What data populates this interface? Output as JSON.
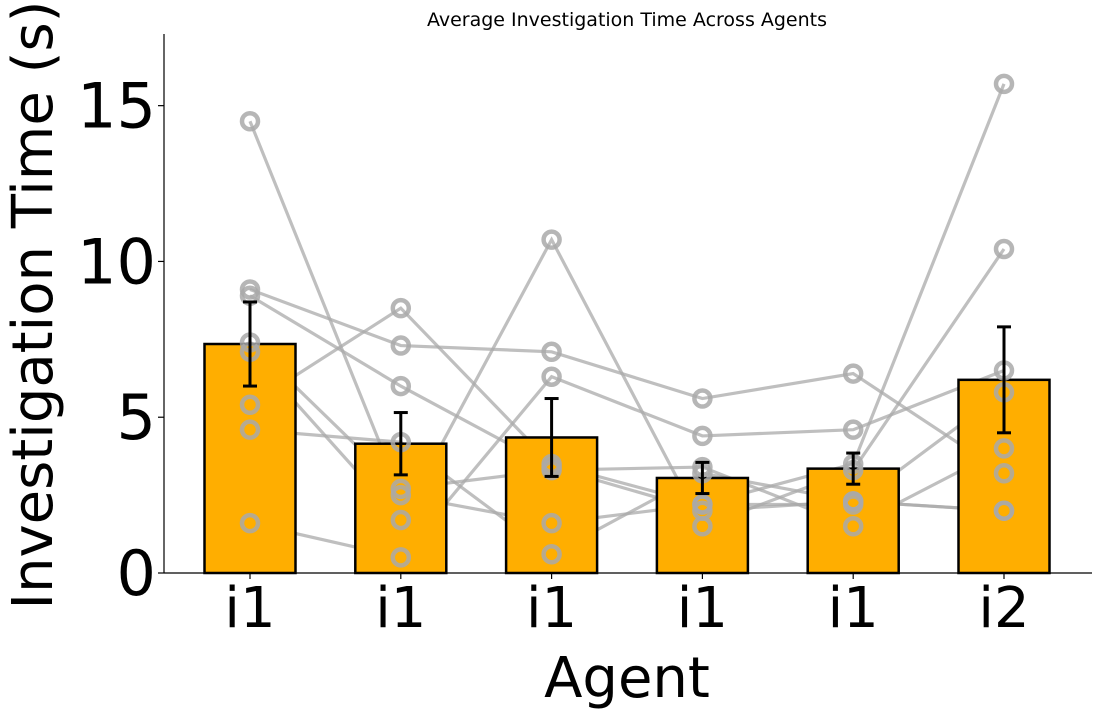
{
  "chart_data": {
    "type": "bar",
    "title": "Average Investigation Time Across Agents",
    "xlabel": "Agent",
    "ylabel": "Investigation Time (s)",
    "categories": [
      "i1",
      "i1",
      "i1",
      "i1",
      "i1",
      "i2"
    ],
    "values": [
      7.35,
      4.15,
      4.35,
      3.05,
      3.35,
      6.2
    ],
    "error": [
      1.35,
      1.0,
      1.25,
      0.5,
      0.5,
      1.7
    ],
    "ylim": [
      0,
      17.3
    ],
    "yticks": [
      0,
      5,
      10,
      15
    ],
    "bar_color": "#FFAE00",
    "bar_edge_color": "#000000",
    "subject_color": "#A9A9A9",
    "grid": false,
    "subjects": [
      [
        14.5,
        2.5,
        1.6,
        2.2,
        3.5,
        15.7
      ],
      [
        9.1,
        7.3,
        7.1,
        5.6,
        6.4,
        3.2
      ],
      [
        8.9,
        6.0,
        3.4,
        2.0,
        2.3,
        2.0
      ],
      [
        7.4,
        2.7,
        3.3,
        3.4,
        1.5,
        4.0
      ],
      [
        7.1,
        1.7,
        10.7,
        1.5,
        3.3,
        10.4
      ],
      [
        5.4,
        8.5,
        3.5,
        2.2,
        2.2,
        5.8
      ],
      [
        4.6,
        4.2,
        0.6,
        3.2,
        2.3,
        2.0
      ],
      [
        1.6,
        0.5,
        6.3,
        4.4,
        4.6,
        6.5
      ]
    ]
  }
}
